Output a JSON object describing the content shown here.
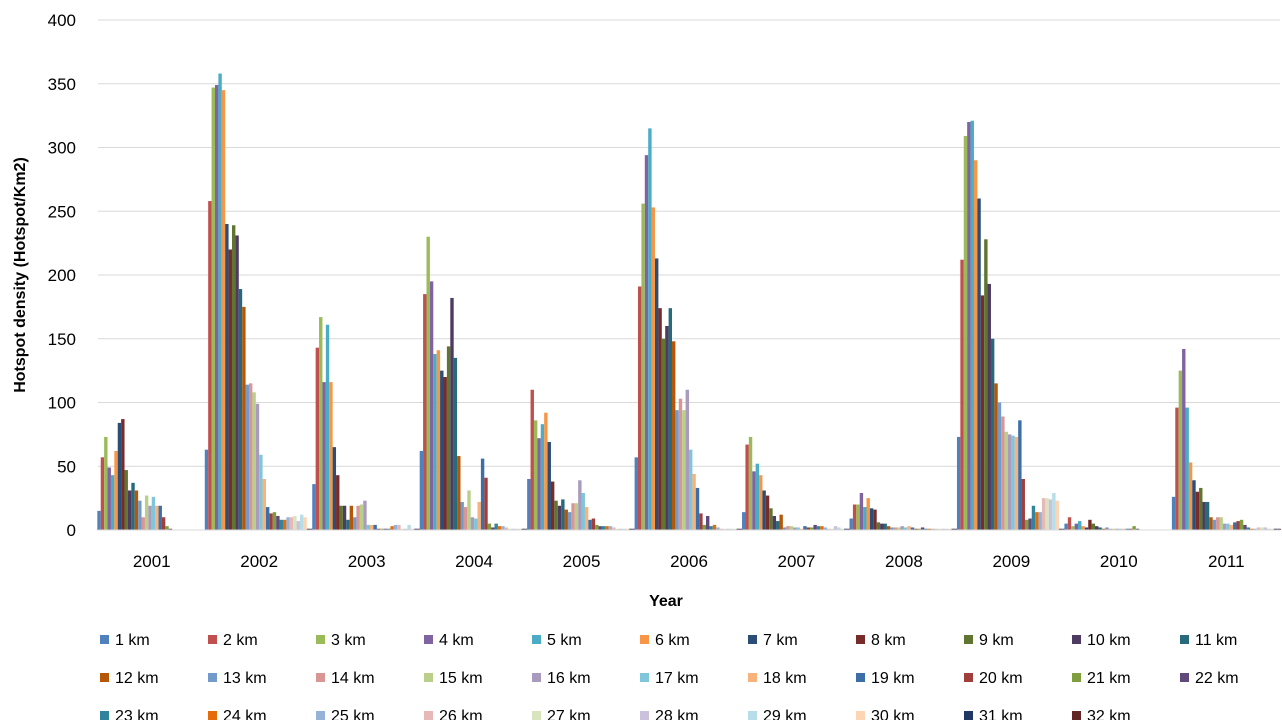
{
  "chart_data": {
    "type": "bar",
    "title": "",
    "xlabel": "Year",
    "ylabel": "Hotspot density (Hotspot/Km2)",
    "ylim": [
      0,
      400
    ],
    "yticks": [
      0,
      50,
      100,
      150,
      200,
      250,
      300,
      350,
      400
    ],
    "grid": true,
    "legend_position": "bottom",
    "categories": [
      "2001",
      "2002",
      "2003",
      "2004",
      "2005",
      "2006",
      "2007",
      "2008",
      "2009",
      "2010",
      "2011"
    ],
    "series": [
      {
        "name": "1 km",
        "color": "#4F81BD",
        "values": [
          15,
          63,
          36,
          62,
          40,
          57,
          14,
          9,
          73,
          5,
          26
        ]
      },
      {
        "name": "2 km",
        "color": "#C0504D",
        "values": [
          57,
          258,
          143,
          185,
          110,
          191,
          67,
          20,
          212,
          10,
          96
        ]
      },
      {
        "name": "3 km",
        "color": "#9BBB59",
        "values": [
          73,
          347,
          167,
          230,
          86,
          256,
          73,
          20,
          309,
          3,
          125
        ]
      },
      {
        "name": "4 km",
        "color": "#8064A2",
        "values": [
          49,
          349,
          116,
          195,
          72,
          294,
          46,
          29,
          320,
          5,
          142
        ]
      },
      {
        "name": "5 km",
        "color": "#4BACC6",
        "values": [
          43,
          358,
          161,
          138,
          83,
          315,
          52,
          18,
          321,
          7,
          96
        ]
      },
      {
        "name": "6 km",
        "color": "#F79646",
        "values": [
          62,
          345,
          116,
          141,
          92,
          253,
          43,
          25,
          290,
          3,
          53
        ]
      },
      {
        "name": "7 km",
        "color": "#2C4D75",
        "values": [
          84,
          240,
          65,
          125,
          69,
          213,
          31,
          17,
          260,
          2,
          39
        ]
      },
      {
        "name": "8 km",
        "color": "#772C2A",
        "values": [
          87,
          220,
          43,
          120,
          38,
          174,
          27,
          16,
          184,
          8,
          30
        ]
      },
      {
        "name": "9 km",
        "color": "#5F7530",
        "values": [
          47,
          239,
          19,
          144,
          23,
          150,
          17,
          6,
          228,
          5,
          33
        ]
      },
      {
        "name": "10 km",
        "color": "#4D3B62",
        "values": [
          31,
          231,
          19,
          182,
          19,
          160,
          11,
          5,
          193,
          3,
          22
        ]
      },
      {
        "name": "11 km",
        "color": "#276A7C",
        "values": [
          37,
          189,
          8,
          135,
          24,
          174,
          7,
          5,
          150,
          2,
          22
        ]
      },
      {
        "name": "12 km",
        "color": "#B65708",
        "values": [
          31,
          175,
          19,
          58,
          16,
          148,
          12,
          3,
          115,
          1,
          10
        ]
      },
      {
        "name": "13 km",
        "color": "#729ACA",
        "values": [
          23,
          114,
          10,
          22,
          14,
          94,
          2,
          2,
          100,
          2,
          8
        ]
      },
      {
        "name": "14 km",
        "color": "#D99694",
        "values": [
          10,
          115,
          19,
          18,
          21,
          103,
          3,
          2,
          89,
          1,
          10
        ]
      },
      {
        "name": "15 km",
        "color": "#B9CF8A",
        "values": [
          27,
          108,
          20,
          31,
          21,
          94,
          3,
          2,
          77,
          1,
          10
        ]
      },
      {
        "name": "16 km",
        "color": "#A99BBD",
        "values": [
          19,
          99,
          23,
          10,
          39,
          110,
          2,
          3,
          75,
          1,
          5
        ]
      },
      {
        "name": "17 km",
        "color": "#7FC6DA",
        "values": [
          26,
          59,
          4,
          9,
          29,
          63,
          2,
          2,
          74,
          1,
          5
        ]
      },
      {
        "name": "18 km",
        "color": "#F9B27A",
        "values": [
          19,
          40,
          4,
          22,
          18,
          44,
          1,
          3,
          73,
          1,
          4
        ]
      },
      {
        "name": "19 km",
        "color": "#3C6FA8",
        "values": [
          19,
          18,
          4,
          56,
          8,
          33,
          3,
          2,
          86,
          1,
          6
        ]
      },
      {
        "name": "20 km",
        "color": "#A03E3B",
        "values": [
          10,
          13,
          1,
          41,
          9,
          13,
          2,
          1,
          40,
          1,
          7
        ]
      },
      {
        "name": "21 km",
        "color": "#7F9E3D",
        "values": [
          3,
          14,
          1,
          5,
          4,
          4,
          2,
          1,
          8,
          3,
          8
        ]
      },
      {
        "name": "22 km",
        "color": "#604A7B",
        "values": [
          1,
          11,
          1,
          2,
          3,
          11,
          4,
          2,
          9,
          1,
          4
        ]
      },
      {
        "name": "23 km",
        "color": "#31849B",
        "values": [
          0,
          8,
          1,
          5,
          3,
          3,
          3,
          1,
          19,
          0,
          2
        ]
      },
      {
        "name": "24 km",
        "color": "#E46C0A",
        "values": [
          0,
          8,
          3,
          3,
          3,
          4,
          3,
          1,
          14,
          0,
          1
        ]
      },
      {
        "name": "25 km",
        "color": "#95B3D7",
        "values": [
          0,
          10,
          4,
          3,
          3,
          2,
          2,
          1,
          14,
          0,
          1
        ]
      },
      {
        "name": "26 km",
        "color": "#E6B9B8",
        "values": [
          0,
          10,
          4,
          2,
          2,
          1,
          1,
          1,
          25,
          0,
          2
        ]
      },
      {
        "name": "27 km",
        "color": "#D7E4BD",
        "values": [
          0,
          11,
          1,
          1,
          1,
          1,
          1,
          1,
          25,
          0,
          2
        ]
      },
      {
        "name": "28 km",
        "color": "#CCC1DA",
        "values": [
          0,
          7,
          1,
          1,
          1,
          1,
          3,
          1,
          24,
          0,
          2
        ]
      },
      {
        "name": "29 km",
        "color": "#B7DEE8",
        "values": [
          0,
          12,
          4,
          1,
          1,
          1,
          2,
          1,
          29,
          0,
          1
        ]
      },
      {
        "name": "30 km",
        "color": "#FCD5B5",
        "values": [
          0,
          10,
          1,
          1,
          1,
          1,
          1,
          1,
          23,
          0,
          1
        ]
      },
      {
        "name": "31 km",
        "color": "#1F3864",
        "values": [
          0,
          1,
          1,
          1,
          1,
          1,
          1,
          1,
          1,
          0,
          1
        ]
      },
      {
        "name": "32 km",
        "color": "#632523",
        "values": [
          0,
          1,
          1,
          1,
          1,
          1,
          1,
          1,
          1,
          0,
          1
        ]
      }
    ]
  }
}
